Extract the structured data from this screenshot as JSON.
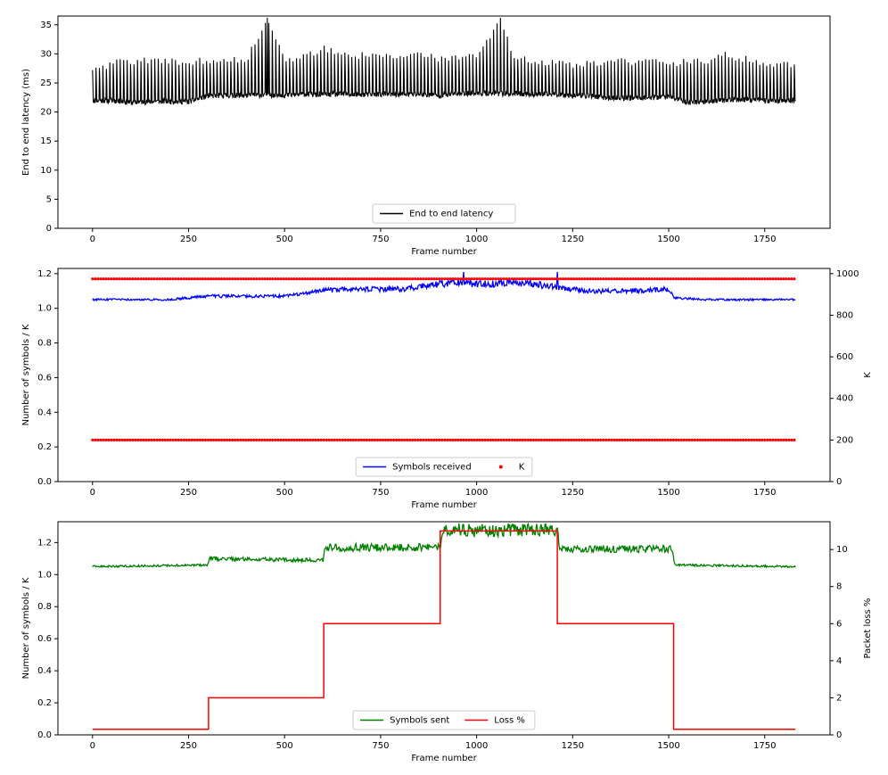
{
  "chart_data": [
    {
      "type": "line",
      "xlabel": "Frame number",
      "ylabel": "End to end latency (ms)",
      "xlim": [
        -90,
        1920
      ],
      "ylim": [
        0,
        36.5
      ],
      "xticks": [
        0,
        250,
        500,
        750,
        1000,
        1250,
        1500,
        1750
      ],
      "yticks": [
        0,
        5,
        10,
        15,
        20,
        25,
        30,
        35
      ],
      "grid": false,
      "legend_position": "lower center",
      "series": [
        {
          "name": "End to end latency",
          "color": "#000000",
          "description": "Oscillating latency: baseline ~21-23 ms with periodic peaks ~28-31 ms, two spikes near 36 ms",
          "x": [
            0,
            50,
            100,
            150,
            200,
            250,
            300,
            350,
            400,
            455,
            500,
            550,
            600,
            650,
            700,
            750,
            800,
            850,
            900,
            950,
            1000,
            1062,
            1100,
            1150,
            1200,
            1250,
            1300,
            1350,
            1400,
            1450,
            1500,
            1550,
            1600,
            1650,
            1700,
            1750,
            1830
          ],
          "low": [
            21.5,
            21.5,
            21.2,
            21.3,
            21.4,
            21.3,
            22.3,
            22.4,
            22.4,
            22.5,
            22.4,
            22.6,
            22.5,
            22.6,
            22.5,
            22.6,
            22.6,
            22.6,
            22.4,
            22.7,
            22.8,
            22.7,
            22.7,
            22.6,
            22.6,
            22.4,
            22.3,
            21.9,
            22.0,
            22.0,
            22.2,
            21.2,
            21.4,
            21.6,
            21.7,
            21.5,
            21.5
          ],
          "high": [
            27.5,
            29.0,
            29.3,
            29.5,
            29.4,
            29.2,
            29.5,
            29.6,
            29.5,
            36.4,
            29.4,
            30.0,
            31.5,
            30.5,
            30.3,
            30.6,
            30.4,
            30.8,
            29.8,
            30.2,
            30.4,
            36.4,
            29.8,
            29.5,
            29.0,
            28.6,
            29.0,
            29.5,
            29.2,
            29.4,
            28.8,
            29.4,
            29.5,
            30.4,
            29.7,
            28.8,
            28.6
          ]
        }
      ]
    },
    {
      "type": "line",
      "xlabel": "Frame number",
      "ylabel": "Number of symbols / K",
      "y2label": "K",
      "xlim": [
        -90,
        1920
      ],
      "ylim": [
        0,
        1.23
      ],
      "y2lim": [
        0,
        1025
      ],
      "xticks": [
        0,
        250,
        500,
        750,
        1000,
        1250,
        1500,
        1750
      ],
      "yticks": [
        0.0,
        0.2,
        0.4,
        0.6,
        0.8,
        1.0,
        1.2
      ],
      "y2ticks": [
        0,
        200,
        400,
        600,
        800,
        1000
      ],
      "grid": false,
      "legend_position": "lower center",
      "series": [
        {
          "name": "Symbols received",
          "color": "#0000ff",
          "axis": "left",
          "x": [
            0,
            100,
            200,
            300,
            400,
            500,
            600,
            650,
            700,
            800,
            900,
            950,
            1000,
            1050,
            1100,
            1150,
            1210,
            1250,
            1300,
            1400,
            1500,
            1515,
            1600,
            1700,
            1830
          ],
          "y": [
            1.05,
            1.05,
            1.05,
            1.07,
            1.07,
            1.07,
            1.1,
            1.11,
            1.11,
            1.11,
            1.14,
            1.15,
            1.14,
            1.14,
            1.15,
            1.14,
            1.12,
            1.11,
            1.1,
            1.1,
            1.11,
            1.06,
            1.05,
            1.05,
            1.05
          ]
        },
        {
          "name": "K",
          "color": "#ff0000",
          "axis": "right",
          "marker": "dot",
          "levels": [
            975,
            200
          ],
          "x_range": [
            0,
            1830
          ]
        }
      ]
    },
    {
      "type": "line",
      "xlabel": "Frame number",
      "ylabel": "Number of symbols / K",
      "y2label": "Packet loss %",
      "xlim": [
        -90,
        1920
      ],
      "ylim": [
        0,
        1.33
      ],
      "y2lim": [
        0,
        11.5
      ],
      "xticks": [
        0,
        250,
        500,
        750,
        1000,
        1250,
        1500,
        1750
      ],
      "yticks": [
        0.0,
        0.2,
        0.4,
        0.6,
        0.8,
        1.0,
        1.2
      ],
      "y2ticks": [
        0,
        2,
        4,
        6,
        8,
        10
      ],
      "grid": false,
      "legend_position": "lower center",
      "series": [
        {
          "name": "Symbols sent",
          "color": "#008000",
          "axis": "left",
          "x": [
            0,
            300,
            305,
            600,
            605,
            905,
            910,
            1210,
            1215,
            1510,
            1515,
            1830
          ],
          "y": [
            1.05,
            1.06,
            1.1,
            1.09,
            1.17,
            1.17,
            1.28,
            1.28,
            1.16,
            1.16,
            1.06,
            1.05
          ]
        },
        {
          "name": "Loss %",
          "color": "#ff0000",
          "axis": "right",
          "step": true,
          "x": [
            0,
            302,
            302,
            602,
            602,
            905,
            905,
            1210,
            1210,
            1513,
            1513,
            1830
          ],
          "y": [
            0.3,
            0.3,
            2,
            2,
            6,
            6,
            11,
            11,
            6,
            6,
            0.3,
            0.3
          ]
        }
      ]
    }
  ]
}
